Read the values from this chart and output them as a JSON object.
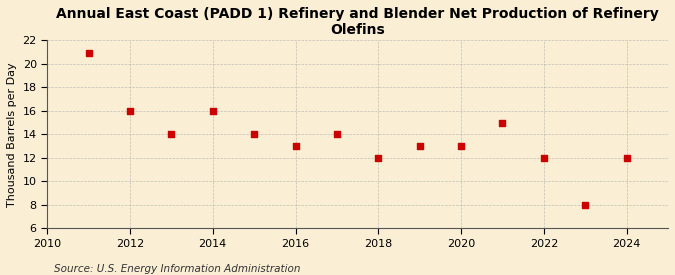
{
  "title": "Annual East Coast (PADD 1) Refinery and Blender Net Production of Refinery Olefins",
  "ylabel": "Thousand Barrels per Day",
  "source": "Source: U.S. Energy Information Administration",
  "x": [
    2011,
    2012,
    2013,
    2014,
    2015,
    2016,
    2017,
    2018,
    2019,
    2020,
    2021,
    2022,
    2023,
    2024
  ],
  "y": [
    20.9,
    16.0,
    14.0,
    16.0,
    14.0,
    13.0,
    14.0,
    12.0,
    13.0,
    13.0,
    15.0,
    12.0,
    8.0,
    12.0
  ],
  "marker_color": "#cc0000",
  "marker_size": 18,
  "xlim": [
    2010,
    2025
  ],
  "ylim": [
    6,
    22
  ],
  "yticks": [
    6,
    8,
    10,
    12,
    14,
    16,
    18,
    20,
    22
  ],
  "xticks": [
    2010,
    2012,
    2014,
    2016,
    2018,
    2020,
    2022,
    2024
  ],
  "background_color": "#faefd4",
  "grid_color": "#aaaaaa",
  "title_fontsize": 10,
  "label_fontsize": 8,
  "source_fontsize": 7.5
}
